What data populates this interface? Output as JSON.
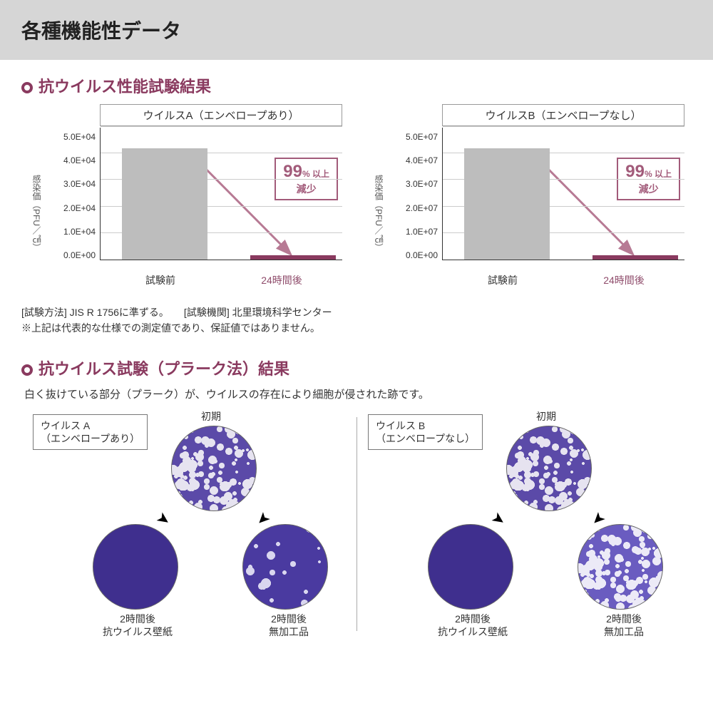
{
  "page": {
    "header": "各種機能性データ"
  },
  "section1": {
    "title": "抗ウイルス性能試験結果",
    "notes_line1": "[試験方法] JIS R 1756に準ずる。　　[試験機関] 北里環境科学センター",
    "notes_line2": "※上記は代表的な仕様での測定値であり、保証値ではありません。"
  },
  "charts": {
    "shared": {
      "ylabel": "感染価（PFU／㎠）",
      "x_categories": [
        "試験前",
        "24時間後"
      ],
      "x_color_after": "#8f4c6b",
      "bar_colors": [
        "#bdbdbd",
        "#8a3a5f"
      ],
      "grid_color": "#cccccc",
      "axis_color": "#333333",
      "callout_big": "99",
      "callout_pct": "% 以上",
      "callout_line2": "減少",
      "callout_border": "#a25b7a",
      "arrow_color": "#b77a94"
    },
    "a": {
      "title": "ウイルスA（エンベロープあり）",
      "yticks": [
        "5.0E+04",
        "4.0E+04",
        "3.0E+04",
        "2.0E+04",
        "1.0E+04",
        "0.0E+00"
      ],
      "ymax": 5.0,
      "values": [
        4.2,
        0.15
      ]
    },
    "b": {
      "title": "ウイルスB（エンベロープなし）",
      "yticks": [
        "5.0E+07",
        "4.0E+07",
        "3.0E+07",
        "2.0E+07",
        "1.0E+07",
        "0.0E+00"
      ],
      "ymax": 5.0,
      "values": [
        4.2,
        0.15
      ]
    }
  },
  "section2": {
    "title": "抗ウイルス試験（プラーク法）結果",
    "desc": "白く抜けている部分（プラーク）が、ウイルスの存在により細胞が侵された跡です。"
  },
  "plaque": {
    "a": {
      "label_line1": "ウイルス A",
      "label_line2": "（エンベロープあり）",
      "initial_label": "初期",
      "left_label_1": "2時間後",
      "left_label_2": "抗ウイルス壁紙",
      "right_label_1": "2時間後",
      "right_label_2": "無加工品",
      "dish_colors": {
        "initial_bg": "#5b4aa8",
        "initial_spot": "#e6e3f0",
        "left_bg": "#3f2f8e",
        "right_bg": "#4a3aa0",
        "right_spot": "#d9d6ef"
      },
      "initial_spot_density": 0.45,
      "right_spot_density": 0.08
    },
    "b": {
      "label_line1": "ウイルス B",
      "label_line2": "（エンベロープなし）",
      "initial_label": "初期",
      "left_label_1": "2時間後",
      "left_label_2": "抗ウイルス壁紙",
      "right_label_1": "2時間後",
      "right_label_2": "無加工品",
      "dish_colors": {
        "initial_bg": "#5b4aa8",
        "initial_spot": "#e6e3f0",
        "left_bg": "#3f2f8e",
        "right_bg": "#6a5cc0",
        "right_spot": "#eceaf7"
      },
      "initial_spot_density": 0.45,
      "right_spot_density": 0.5
    }
  }
}
